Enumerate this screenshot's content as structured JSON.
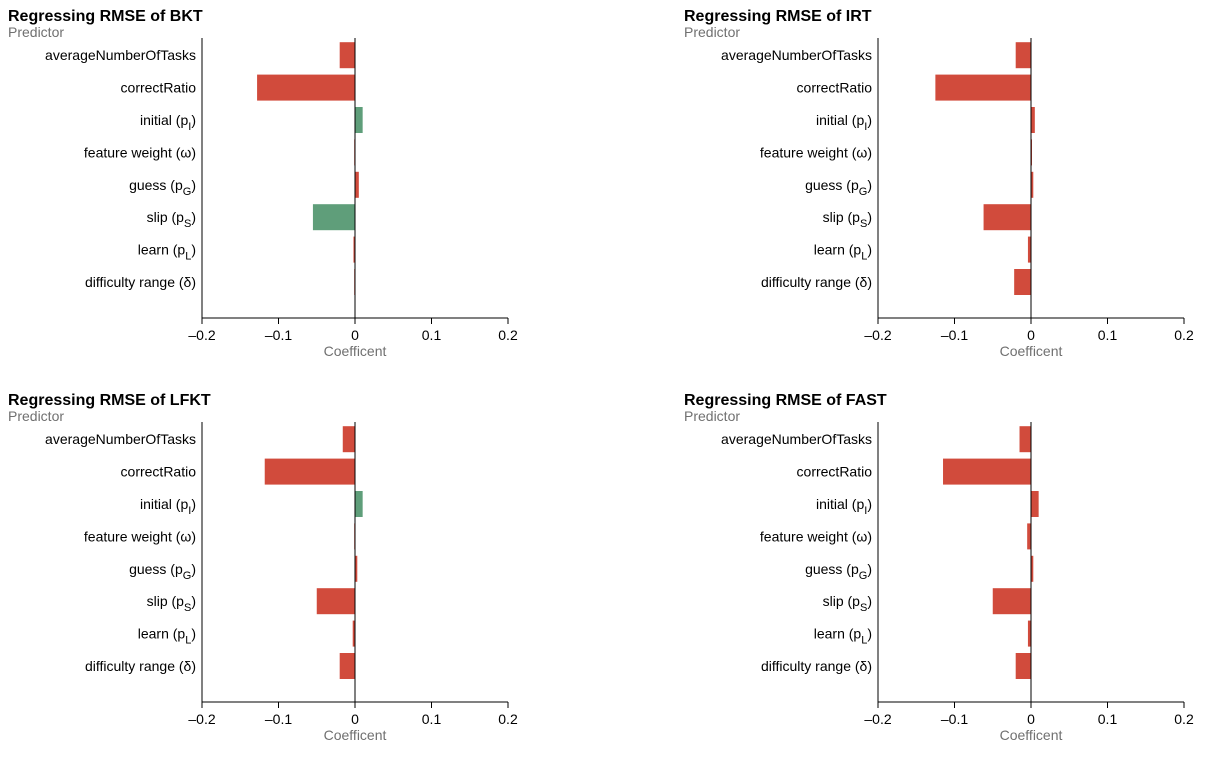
{
  "predictors": [
    {
      "label": "averageNumberOfTasks",
      "base": "averageNumberOfTasks",
      "sub": ""
    },
    {
      "label": "correctRatio",
      "base": "correctRatio",
      "sub": ""
    },
    {
      "label": "initial (pI)",
      "base": "initial (p",
      "sub": "I"
    },
    {
      "label": "feature weight (ω)",
      "base": "feature weight (ω)",
      "sub": ""
    },
    {
      "label": "guess (pG)",
      "base": "guess (p",
      "sub": "G"
    },
    {
      "label": "slip (pS)",
      "base": "slip (p",
      "sub": "S"
    },
    {
      "label": "learn (pL)",
      "base": "learn (p",
      "sub": "L"
    },
    {
      "label": "difficulty range (δ)",
      "base": "difficulty range (δ)",
      "sub": ""
    }
  ],
  "colors": {
    "negative": "#d14b3c",
    "positive": "#5f9e7a",
    "axis": "#000000",
    "label": "#707070"
  },
  "chart_data": [
    {
      "type": "bar",
      "orientation": "horizontal",
      "title": "Regressing RMSE of BKT",
      "ylabel": "Predictor",
      "xlabel": "Coefficent",
      "xlim": [
        -0.2,
        0.2
      ],
      "xticks": [
        -0.2,
        -0.1,
        0,
        0.1,
        0.2
      ],
      "xtick_labels": [
        "–0.2",
        "–0.1",
        "0",
        "0.1",
        "0.2"
      ],
      "values": [
        -0.02,
        -0.128,
        0.01,
        -0.001,
        0.005,
        -0.055,
        -0.002,
        -0.001
      ],
      "bar_colors": [
        "negative",
        "negative",
        "positive",
        "negative",
        "negative",
        "positive",
        "negative",
        "negative"
      ]
    },
    {
      "type": "bar",
      "orientation": "horizontal",
      "title": "Regressing RMSE of IRT",
      "ylabel": "Predictor",
      "xlabel": "Coefficent",
      "xlim": [
        -0.2,
        0.2
      ],
      "xticks": [
        -0.2,
        -0.1,
        0,
        0.1,
        0.2
      ],
      "xtick_labels": [
        "–0.2",
        "–0.1",
        "0",
        "0.1",
        "0.2"
      ],
      "values": [
        -0.02,
        -0.125,
        0.005,
        0.001,
        0.003,
        -0.062,
        -0.004,
        -0.022
      ],
      "bar_colors": [
        "negative",
        "negative",
        "negative",
        "negative",
        "negative",
        "negative",
        "negative",
        "negative"
      ]
    },
    {
      "type": "bar",
      "orientation": "horizontal",
      "title": "Regressing RMSE of LFKT",
      "ylabel": "Predictor",
      "xlabel": "Coefficent",
      "xlim": [
        -0.2,
        0.2
      ],
      "xticks": [
        -0.2,
        -0.1,
        0,
        0.1,
        0.2
      ],
      "xtick_labels": [
        "–0.2",
        "–0.1",
        "0",
        "0.1",
        "0.2"
      ],
      "values": [
        -0.016,
        -0.118,
        0.01,
        -0.001,
        0.003,
        -0.05,
        -0.003,
        -0.02
      ],
      "bar_colors": [
        "negative",
        "negative",
        "positive",
        "negative",
        "negative",
        "negative",
        "negative",
        "negative"
      ]
    },
    {
      "type": "bar",
      "orientation": "horizontal",
      "title": "Regressing RMSE of FAST",
      "ylabel": "Predictor",
      "xlabel": "Coefficent",
      "xlim": [
        -0.2,
        0.2
      ],
      "xticks": [
        -0.2,
        -0.1,
        0,
        0.1,
        0.2
      ],
      "xtick_labels": [
        "–0.2",
        "–0.1",
        "0",
        "0.1",
        "0.2"
      ],
      "values": [
        -0.015,
        -0.115,
        0.01,
        -0.005,
        0.003,
        -0.05,
        -0.004,
        -0.02
      ],
      "bar_colors": [
        "negative",
        "negative",
        "negative",
        "negative",
        "negative",
        "negative",
        "negative",
        "negative"
      ]
    }
  ]
}
